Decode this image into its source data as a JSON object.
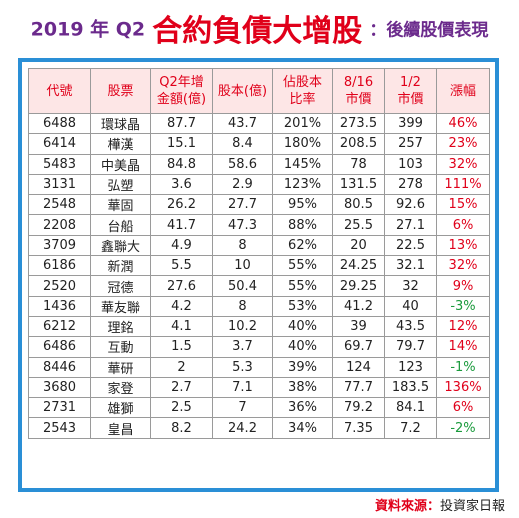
{
  "title": {
    "prefix": "2019 年 Q2",
    "main": "合約負債大增股",
    "suffix": "：後續股價表現"
  },
  "table": {
    "headers": [
      [
        "代號"
      ],
      [
        "股票"
      ],
      [
        "Q2年增",
        "金額(億)"
      ],
      [
        "股本(億)"
      ],
      [
        "佔股本",
        "比率"
      ],
      [
        "8/16",
        "市價"
      ],
      [
        "1/2",
        "市價"
      ],
      [
        "漲幅"
      ]
    ],
    "rows": [
      [
        "6488",
        "環球晶",
        "87.7",
        "43.7",
        "201%",
        "273.5",
        "399",
        "46%"
      ],
      [
        "6414",
        "樺漢",
        "15.1",
        "8.4",
        "180%",
        "208.5",
        "257",
        "23%"
      ],
      [
        "5483",
        "中美晶",
        "84.8",
        "58.6",
        "145%",
        "78",
        "103",
        "32%"
      ],
      [
        "3131",
        "弘塑",
        "3.6",
        "2.9",
        "123%",
        "131.5",
        "278",
        "111%"
      ],
      [
        "2548",
        "華固",
        "26.2",
        "27.7",
        "95%",
        "80.5",
        "92.6",
        "15%"
      ],
      [
        "2208",
        "台船",
        "41.7",
        "47.3",
        "88%",
        "25.5",
        "27.1",
        "6%"
      ],
      [
        "3709",
        "鑫聯大",
        "4.9",
        "8",
        "62%",
        "20",
        "22.5",
        "13%"
      ],
      [
        "6186",
        "新潤",
        "5.5",
        "10",
        "55%",
        "24.25",
        "32.1",
        "32%"
      ],
      [
        "2520",
        "冠德",
        "27.6",
        "50.4",
        "55%",
        "29.25",
        "32",
        "9%"
      ],
      [
        "1436",
        "華友聯",
        "4.2",
        "8",
        "53%",
        "41.2",
        "40",
        "-3%"
      ],
      [
        "6212",
        "理銘",
        "4.1",
        "10.2",
        "40%",
        "39",
        "43.5",
        "12%"
      ],
      [
        "6486",
        "互動",
        "1.5",
        "3.7",
        "40%",
        "69.7",
        "79.7",
        "14%"
      ],
      [
        "8446",
        "華研",
        "2",
        "5.3",
        "39%",
        "124",
        "123",
        "-1%"
      ],
      [
        "3680",
        "家登",
        "2.7",
        "7.1",
        "38%",
        "77.7",
        "183.5",
        "136%"
      ],
      [
        "2731",
        "雄獅",
        "2.5",
        "7",
        "36%",
        "79.2",
        "84.1",
        "6%"
      ],
      [
        "2543",
        "皇昌",
        "8.2",
        "24.2",
        "34%",
        "7.35",
        "7.2",
        "-2%"
      ]
    ]
  },
  "source": {
    "label": "資料來源",
    "separator": "：",
    "value": "投資家日報"
  },
  "colors": {
    "accent_red": "#e0001a",
    "title_purple": "#6b2a8c",
    "frame_blue": "#2a8fd6",
    "header_bg": "#fde6e6",
    "negative_green": "#1a9a3c"
  }
}
